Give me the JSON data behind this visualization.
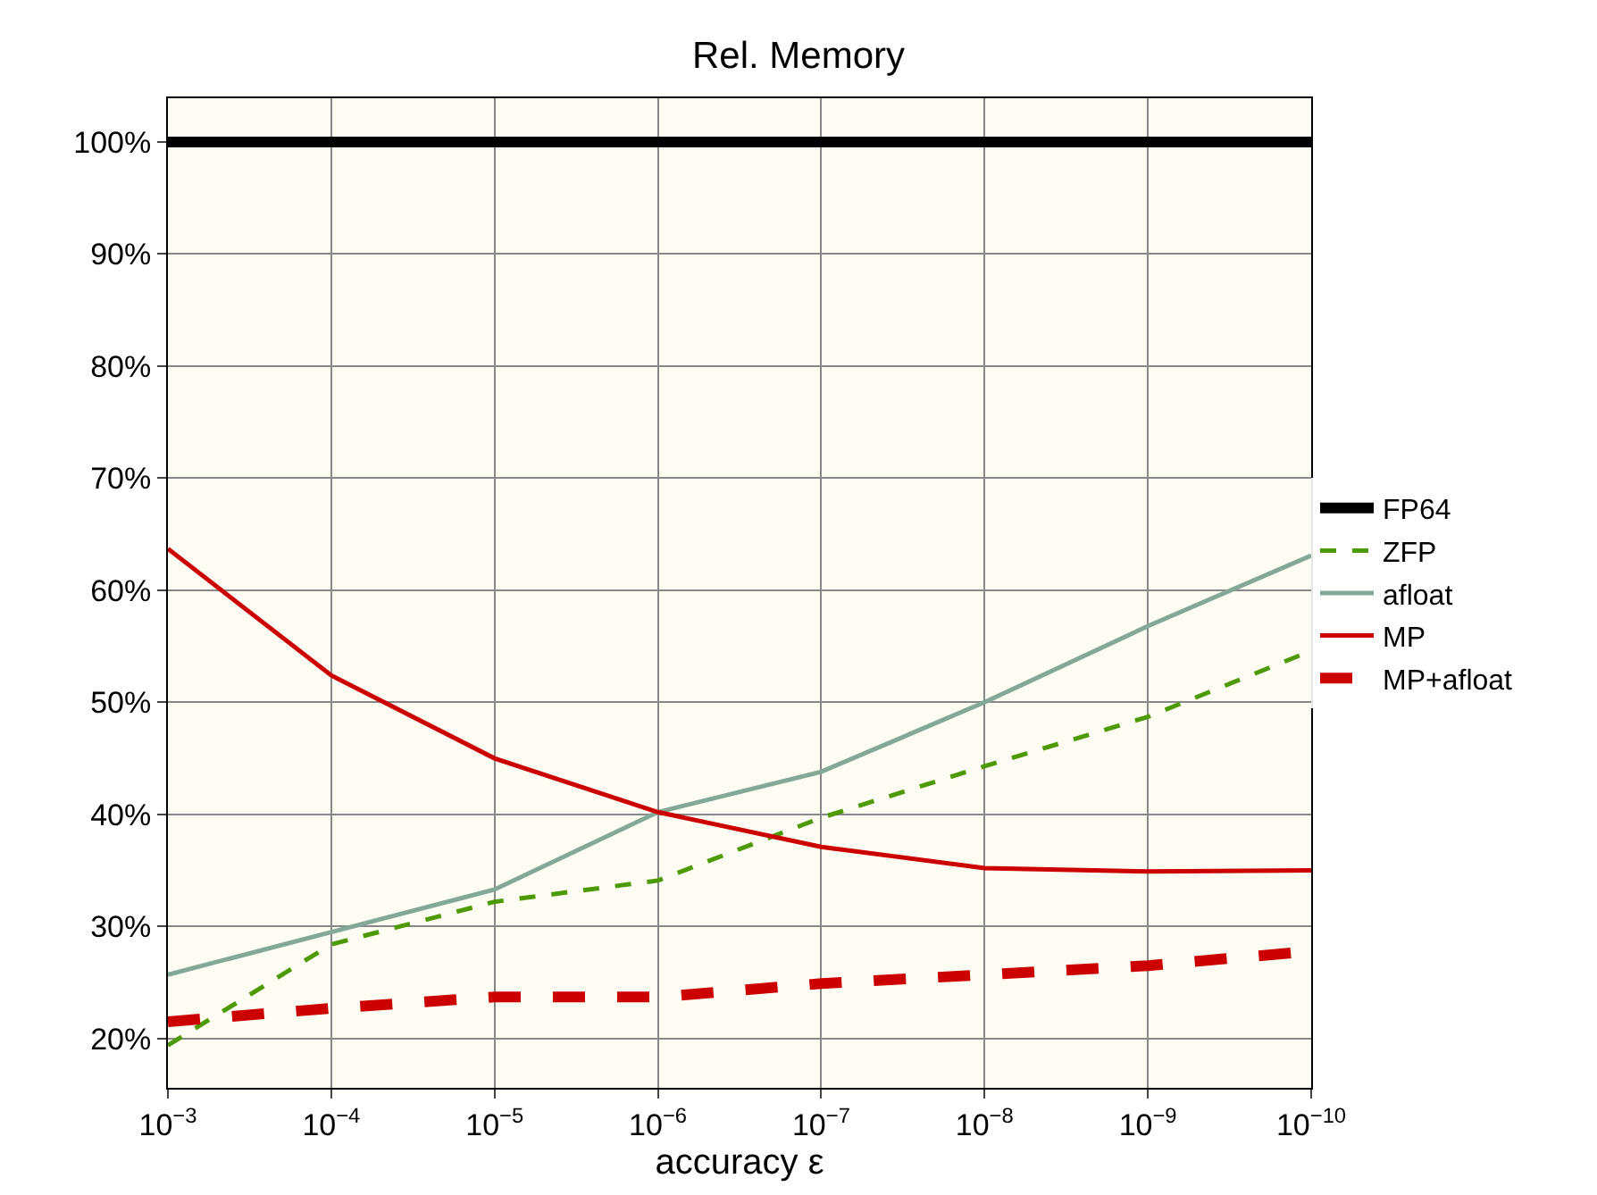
{
  "chart_data": {
    "type": "line",
    "title": "Rel. Memory",
    "xlabel": "accuracy ε",
    "log": "x",
    "grid": true,
    "legend": "right",
    "marker": "none",
    "x": [
      0.001,
      0.0001,
      1e-05,
      1e-06,
      1e-07,
      1e-08,
      1e-09,
      1e-10
    ],
    "xlim": [
      0.001,
      1e-10
    ],
    "xticks": [
      {
        "value": 0.001,
        "label": "10$^{−3}$"
      },
      {
        "value": 0.0001,
        "label": "10$^{−4}$"
      },
      {
        "value": 1e-05,
        "label": "10$^{−5}$"
      },
      {
        "value": 1e-06,
        "label": "10$^{−6}$"
      },
      {
        "value": 1e-07,
        "label": "10$^{−7}$"
      },
      {
        "value": 1e-08,
        "label": "10$^{−8}$"
      },
      {
        "value": 1e-09,
        "label": "10$^{−9}$"
      },
      {
        "value": 1e-10,
        "label": "10$^{−10}$"
      }
    ],
    "ylim": [
      15.6,
      103.9
    ],
    "yticks": [
      {
        "value": 20,
        "label": "20%"
      },
      {
        "value": 30,
        "label": "30%"
      },
      {
        "value": 40,
        "label": "40%"
      },
      {
        "value": 50,
        "label": "50%"
      },
      {
        "value": 60,
        "label": "60%"
      },
      {
        "value": 70,
        "label": "70%"
      },
      {
        "value": 80,
        "label": "80%"
      },
      {
        "value": 90,
        "label": "90%"
      },
      {
        "value": 100,
        "label": "100%"
      }
    ],
    "series": [
      {
        "name": "FP64",
        "color": "#000000",
        "line_style": "solid",
        "values": [
          100,
          100,
          100,
          100,
          100,
          100,
          100,
          100
        ]
      },
      {
        "name": "ZFP",
        "color": "#4e9a06",
        "line_style": "dashed",
        "values": [
          19.4,
          28.4,
          32.2,
          34.1,
          39.7,
          44.3,
          48.7,
          54.6
        ]
      },
      {
        "name": "afloat",
        "color": "#83a898",
        "line_style": "solid",
        "values": [
          25.7,
          29.5,
          33.3,
          40.2,
          43.8,
          50.0,
          56.8,
          63.1
        ]
      },
      {
        "name": "MP",
        "color": "#cc0000",
        "line_style": "solid",
        "values": [
          63.7,
          52.4,
          45.0,
          40.2,
          37.1,
          35.2,
          34.9,
          35.0
        ]
      },
      {
        "name": "MP+afloat",
        "color": "#cc0000",
        "line_style": "dashed",
        "values": [
          21.5,
          22.7,
          23.7,
          23.7,
          24.9,
          25.7,
          26.5,
          27.8
        ]
      }
    ]
  }
}
